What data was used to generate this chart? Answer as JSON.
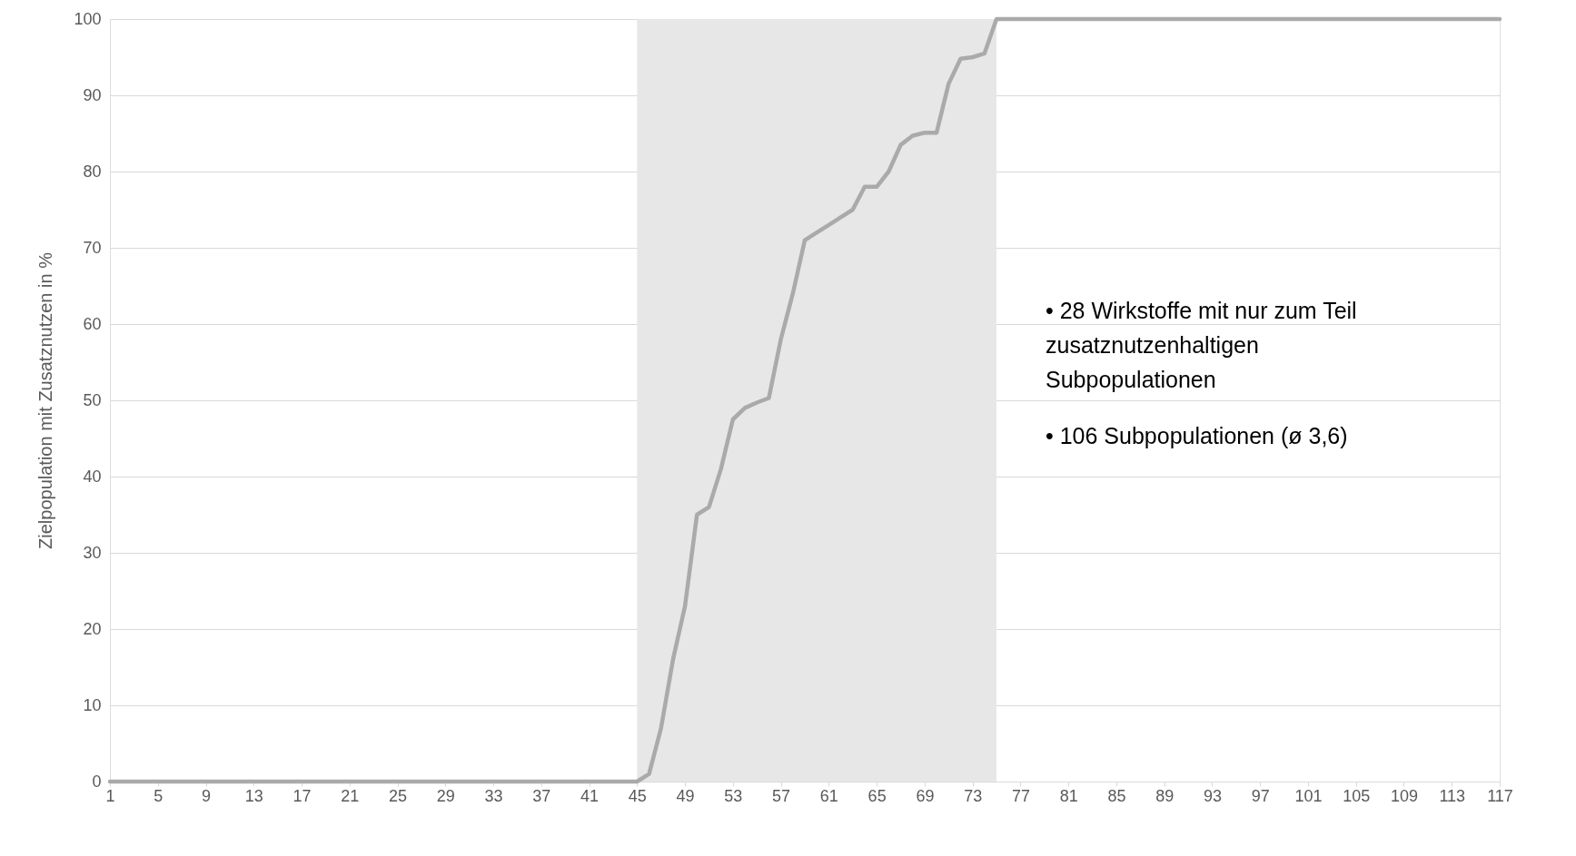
{
  "chart_data": {
    "type": "line",
    "ylabel": "Zielpopulation mit Zusatznutzen in %",
    "x": [
      1,
      2,
      3,
      4,
      5,
      6,
      7,
      8,
      9,
      10,
      11,
      12,
      13,
      14,
      15,
      16,
      17,
      18,
      19,
      20,
      21,
      22,
      23,
      24,
      25,
      26,
      27,
      28,
      29,
      30,
      31,
      32,
      33,
      34,
      35,
      36,
      37,
      38,
      39,
      40,
      41,
      42,
      43,
      44,
      45,
      46,
      47,
      48,
      49,
      50,
      51,
      52,
      53,
      54,
      55,
      56,
      57,
      58,
      59,
      60,
      61,
      62,
      63,
      64,
      65,
      66,
      67,
      68,
      69,
      70,
      71,
      72,
      73,
      74,
      75,
      76,
      77,
      78,
      79,
      80,
      81,
      82,
      83,
      84,
      85,
      86,
      87,
      88,
      89,
      90,
      91,
      92,
      93,
      94,
      95,
      96,
      97,
      98,
      99,
      100,
      101,
      102,
      103,
      104,
      105,
      106,
      107,
      108,
      109,
      110,
      111,
      112,
      113,
      114,
      115,
      116,
      117
    ],
    "series": [
      {
        "color": "#aaaaaa",
        "values": [
          0,
          0,
          0,
          0,
          0,
          0,
          0,
          0,
          0,
          0,
          0,
          0,
          0,
          0,
          0,
          0,
          0,
          0,
          0,
          0,
          0,
          0,
          0,
          0,
          0,
          0,
          0,
          0,
          0,
          0,
          0,
          0,
          0,
          0,
          0,
          0,
          0,
          0,
          0,
          0,
          0,
          0,
          0,
          0,
          0,
          1,
          7,
          16,
          23,
          35,
          36,
          41,
          47.5,
          49,
          49.7,
          50.3,
          58,
          64,
          71,
          72,
          73,
          74,
          75,
          78,
          78,
          80,
          83.5,
          84.7,
          85.1,
          85.1,
          91.5,
          94.8,
          95,
          95.5,
          100,
          100,
          100,
          100,
          100,
          100,
          100,
          100,
          100,
          100,
          100,
          100,
          100,
          100,
          100,
          100,
          100,
          100,
          100,
          100,
          100,
          100,
          100,
          100,
          100,
          100,
          100,
          100,
          100,
          100,
          100,
          100,
          100,
          100,
          100,
          100,
          100,
          100,
          100,
          100,
          100,
          100,
          100
        ]
      }
    ],
    "xlim": [
      1,
      117
    ],
    "xticks": [
      1,
      5,
      9,
      13,
      17,
      21,
      25,
      29,
      33,
      37,
      41,
      45,
      49,
      53,
      57,
      61,
      65,
      69,
      73,
      77,
      81,
      85,
      89,
      93,
      97,
      101,
      105,
      109,
      113,
      117
    ],
    "ylim": [
      0,
      100
    ],
    "yticks": [
      0,
      10,
      20,
      30,
      40,
      50,
      60,
      70,
      80,
      90,
      100
    ],
    "grid": "y",
    "marker": "none",
    "line_style": "solid",
    "bands": [
      {
        "axis": "x",
        "from": 45,
        "to": 75,
        "color": "#e7e7e7"
      }
    ],
    "annotations": [
      "• 28 Wirkstoffe mit nur zum Teil zusatznutzenhaltigen Subpopulationen",
      "• 106 Subpopulationen (ø 3,6)"
    ]
  }
}
